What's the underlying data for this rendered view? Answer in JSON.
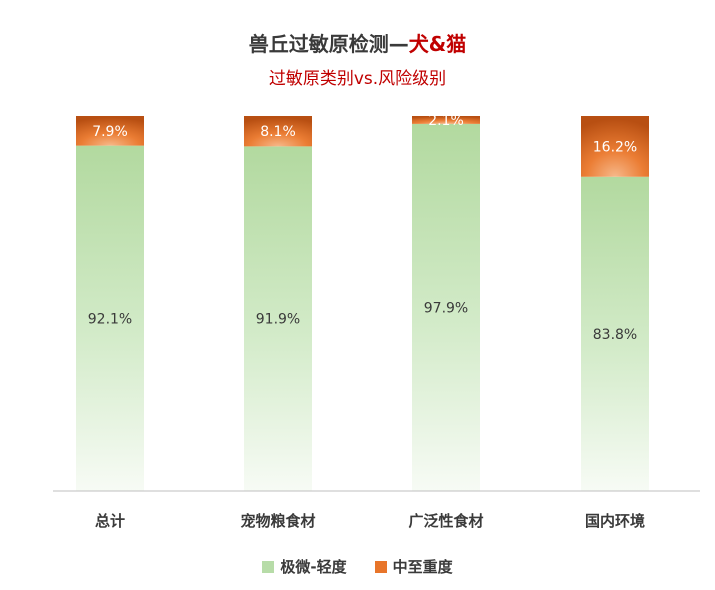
{
  "chart_data": {
    "type": "bar",
    "stacked": true,
    "title_main": "兽丘过敏原检测—",
    "title_highlight": "犬&猫",
    "subtitle": "过敏原类别vs.风险级别",
    "categories": [
      "总计",
      "宠物粮食材",
      "广泛性食材",
      "国内环境"
    ],
    "series": [
      {
        "name": "极微-轻度",
        "values": [
          92.1,
          91.9,
          97.9,
          83.8
        ],
        "labels": [
          "92.1%",
          "91.9%",
          "97.9%",
          "83.8%"
        ],
        "color": "#b7dca8"
      },
      {
        "name": "中至重度",
        "values": [
          7.9,
          8.1,
          2.1,
          16.2
        ],
        "labels": [
          "7.9%",
          "8.1%",
          "2.1%",
          "16.2%"
        ],
        "color": "#e8752a"
      }
    ],
    "ylim": [
      0,
      100
    ],
    "grid": false,
    "legend_position": "bottom"
  }
}
